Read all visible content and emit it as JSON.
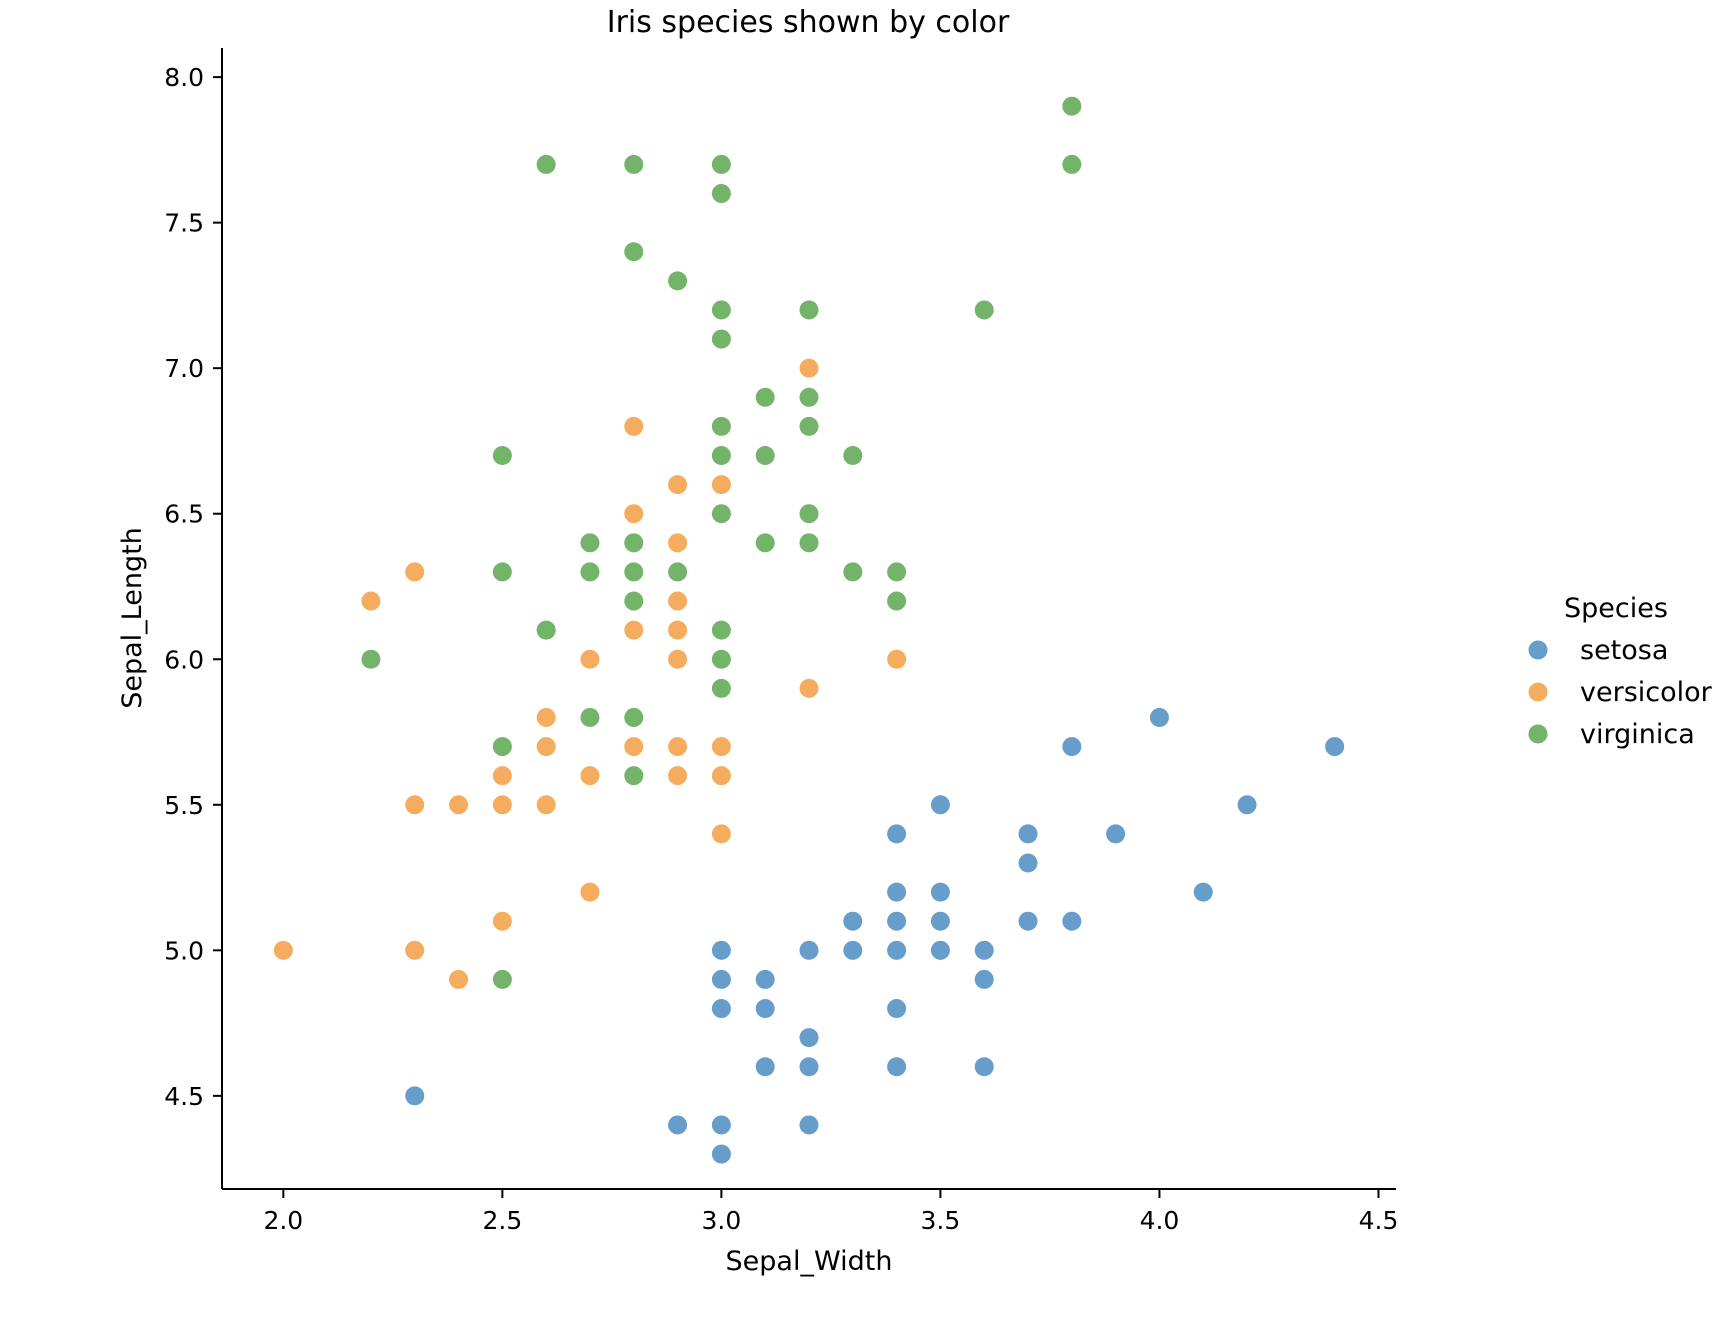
{
  "chart_data": {
    "type": "scatter",
    "title": "Iris species shown by color",
    "xlabel": "Sepal_Width",
    "ylabel": "Sepal_Length",
    "xlim": [
      1.86,
      4.54
    ],
    "ylim": [
      4.18,
      8.1
    ],
    "xticks": [
      "2.0",
      "2.5",
      "3.0",
      "3.5",
      "4.0",
      "4.5"
    ],
    "yticks": [
      "4.5",
      "5.0",
      "5.5",
      "6.0",
      "6.5",
      "7.0",
      "7.5",
      "8.0"
    ],
    "grid": false,
    "legend": {
      "title": "Species",
      "position": "right"
    },
    "series": [
      {
        "name": "setosa",
        "color": "#4c8cc2",
        "points": [
          [
            2.3,
            4.5
          ],
          [
            2.9,
            4.4
          ],
          [
            3.0,
            4.4
          ],
          [
            3.0,
            4.3
          ],
          [
            3.2,
            4.4
          ],
          [
            3.0,
            5.0
          ],
          [
            3.0,
            4.9
          ],
          [
            3.0,
            4.8
          ],
          [
            3.1,
            4.9
          ],
          [
            3.1,
            4.8
          ],
          [
            3.1,
            4.6
          ],
          [
            3.2,
            4.7
          ],
          [
            3.2,
            4.6
          ],
          [
            3.2,
            5.0
          ],
          [
            3.3,
            5.1
          ],
          [
            3.3,
            5.0
          ],
          [
            3.4,
            5.4
          ],
          [
            3.4,
            5.2
          ],
          [
            3.4,
            5.1
          ],
          [
            3.4,
            5.0
          ],
          [
            3.4,
            4.8
          ],
          [
            3.4,
            4.6
          ],
          [
            3.5,
            5.5
          ],
          [
            3.5,
            5.2
          ],
          [
            3.5,
            5.1
          ],
          [
            3.5,
            5.0
          ],
          [
            3.6,
            5.0
          ],
          [
            3.6,
            4.9
          ],
          [
            3.6,
            4.6
          ],
          [
            3.7,
            5.4
          ],
          [
            3.7,
            5.3
          ],
          [
            3.7,
            5.1
          ],
          [
            3.8,
            5.7
          ],
          [
            3.8,
            5.1
          ],
          [
            3.9,
            5.4
          ],
          [
            4.0,
            5.8
          ],
          [
            4.1,
            5.2
          ],
          [
            4.2,
            5.5
          ],
          [
            4.4,
            5.7
          ]
        ]
      },
      {
        "name": "versicolor",
        "color": "#f59d43",
        "points": [
          [
            2.0,
            5.0
          ],
          [
            2.2,
            6.2
          ],
          [
            2.3,
            6.3
          ],
          [
            2.3,
            5.5
          ],
          [
            2.3,
            5.0
          ],
          [
            2.4,
            5.5
          ],
          [
            2.4,
            4.9
          ],
          [
            2.5,
            5.6
          ],
          [
            2.5,
            5.5
          ],
          [
            2.5,
            5.1
          ],
          [
            2.6,
            5.8
          ],
          [
            2.6,
            5.7
          ],
          [
            2.6,
            5.5
          ],
          [
            2.7,
            6.0
          ],
          [
            2.7,
            5.6
          ],
          [
            2.7,
            5.2
          ],
          [
            2.8,
            6.8
          ],
          [
            2.8,
            6.5
          ],
          [
            2.8,
            6.1
          ],
          [
            2.8,
            5.7
          ],
          [
            2.9,
            6.6
          ],
          [
            2.9,
            6.4
          ],
          [
            2.9,
            6.2
          ],
          [
            2.9,
            6.1
          ],
          [
            2.9,
            6.0
          ],
          [
            2.9,
            5.7
          ],
          [
            2.9,
            5.6
          ],
          [
            3.0,
            6.6
          ],
          [
            3.0,
            5.7
          ],
          [
            3.0,
            5.6
          ],
          [
            3.0,
            5.4
          ],
          [
            3.2,
            7.0
          ],
          [
            3.2,
            5.9
          ],
          [
            3.4,
            6.0
          ]
        ]
      },
      {
        "name": "virginica",
        "color": "#5ba650",
        "points": [
          [
            2.2,
            6.0
          ],
          [
            2.5,
            6.7
          ],
          [
            2.5,
            6.3
          ],
          [
            2.5,
            5.7
          ],
          [
            2.5,
            4.9
          ],
          [
            2.6,
            7.7
          ],
          [
            2.6,
            6.1
          ],
          [
            2.7,
            6.4
          ],
          [
            2.7,
            6.3
          ],
          [
            2.7,
            5.8
          ],
          [
            2.8,
            7.7
          ],
          [
            2.8,
            7.4
          ],
          [
            2.8,
            6.4
          ],
          [
            2.8,
            6.3
          ],
          [
            2.8,
            6.2
          ],
          [
            2.8,
            5.8
          ],
          [
            2.8,
            5.6
          ],
          [
            2.9,
            7.3
          ],
          [
            2.9,
            6.3
          ],
          [
            3.0,
            7.7
          ],
          [
            3.0,
            7.6
          ],
          [
            3.0,
            7.2
          ],
          [
            3.0,
            7.1
          ],
          [
            3.0,
            6.8
          ],
          [
            3.0,
            6.7
          ],
          [
            3.0,
            6.5
          ],
          [
            3.0,
            6.1
          ],
          [
            3.0,
            6.0
          ],
          [
            3.0,
            5.9
          ],
          [
            3.1,
            6.9
          ],
          [
            3.1,
            6.7
          ],
          [
            3.1,
            6.4
          ],
          [
            3.2,
            7.2
          ],
          [
            3.2,
            6.9
          ],
          [
            3.2,
            6.8
          ],
          [
            3.2,
            6.5
          ],
          [
            3.2,
            6.4
          ],
          [
            3.3,
            6.7
          ],
          [
            3.3,
            6.3
          ],
          [
            3.4,
            6.3
          ],
          [
            3.4,
            6.2
          ],
          [
            3.6,
            7.2
          ],
          [
            3.8,
            7.9
          ],
          [
            3.8,
            7.7
          ]
        ]
      }
    ]
  }
}
